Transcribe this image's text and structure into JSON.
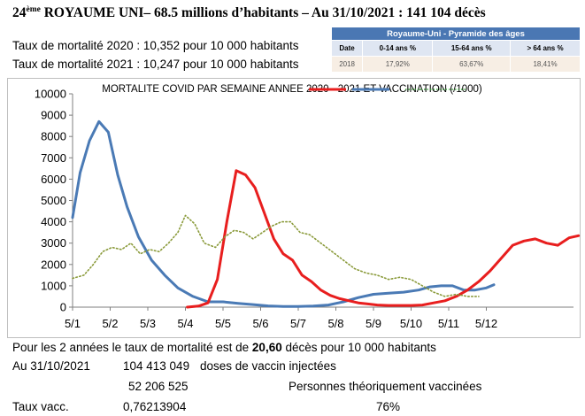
{
  "header": {
    "rank": "24",
    "rank_suffix": "ème",
    "title": " ROYAUME UNI– 68.5 millions d’habitants – Au 31/10/2021 : 141 104 décès"
  },
  "rates": [
    "Taux de mortalité 2020 : 10,352 pour 10 000 habitants",
    "Taux de mortalité 2021 : 10,247 pour 10 000 habitants"
  ],
  "pyramid": {
    "caption": "Royaume-Uni - Pyramide des âges",
    "columns": [
      "Date",
      "0-14 ans %",
      "15-64 ans %",
      "> 64 ans %"
    ],
    "row": [
      "2018",
      "17,92%",
      "63,67%",
      "18,41%"
    ]
  },
  "chart_data": {
    "type": "line",
    "title": "MORTALITE COVID PAR SEMAINE ANNEE 2020 - 2021 ET VACCINATION (/1000)",
    "ylim": [
      0,
      10000
    ],
    "yticks": [
      "0",
      "1000",
      "2000",
      "3000",
      "4000",
      "5000",
      "6000",
      "7000",
      "8000",
      "9000",
      "10000"
    ],
    "xticks": [
      "5/1",
      "5/2",
      "5/3",
      "5/4",
      "5/5",
      "5/6",
      "5/7",
      "5/8",
      "5/9",
      "5/10",
      "5/11",
      "5/12"
    ],
    "grid": false,
    "series": [
      {
        "color": "#4a7ab5",
        "style": "solid",
        "points": [
          [
            0,
            4200
          ],
          [
            0.2,
            6300
          ],
          [
            0.45,
            7800
          ],
          [
            0.7,
            8700
          ],
          [
            0.95,
            8200
          ],
          [
            1.2,
            6200
          ],
          [
            1.45,
            4700
          ],
          [
            1.75,
            3300
          ],
          [
            2.1,
            2200
          ],
          [
            2.45,
            1500
          ],
          [
            2.8,
            900
          ],
          [
            3.2,
            500
          ],
          [
            3.6,
            250
          ],
          [
            4.0,
            250
          ],
          [
            4.4,
            180
          ],
          [
            4.8,
            120
          ],
          [
            5.2,
            60
          ],
          [
            5.6,
            30
          ],
          [
            6.0,
            30
          ],
          [
            6.4,
            50
          ],
          [
            6.8,
            100
          ],
          [
            7.2,
            250
          ],
          [
            7.6,
            450
          ],
          [
            8.0,
            600
          ],
          [
            8.4,
            650
          ],
          [
            8.8,
            700
          ],
          [
            9.2,
            800
          ],
          [
            9.5,
            950
          ],
          [
            9.8,
            1000
          ],
          [
            10.1,
            1000
          ],
          [
            10.4,
            800
          ],
          [
            10.7,
            800
          ],
          [
            11.0,
            900
          ],
          [
            11.2,
            1050
          ]
        ]
      },
      {
        "color": "#e81e1e",
        "style": "solid",
        "points": [
          [
            3.05,
            0
          ],
          [
            3.35,
            50
          ],
          [
            3.6,
            200
          ],
          [
            3.85,
            1300
          ],
          [
            4.1,
            4000
          ],
          [
            4.35,
            6400
          ],
          [
            4.6,
            6200
          ],
          [
            4.85,
            5600
          ],
          [
            5.1,
            4400
          ],
          [
            5.35,
            3200
          ],
          [
            5.6,
            2500
          ],
          [
            5.85,
            2200
          ],
          [
            6.1,
            1500
          ],
          [
            6.35,
            1200
          ],
          [
            6.6,
            800
          ],
          [
            6.85,
            550
          ],
          [
            7.1,
            400
          ],
          [
            7.35,
            300
          ],
          [
            7.6,
            200
          ],
          [
            7.85,
            150
          ],
          [
            8.1,
            100
          ],
          [
            8.4,
            80
          ],
          [
            8.7,
            80
          ],
          [
            9.0,
            80
          ],
          [
            9.3,
            100
          ],
          [
            9.6,
            200
          ],
          [
            9.9,
            300
          ],
          [
            10.2,
            500
          ],
          [
            10.5,
            800
          ],
          [
            10.8,
            1200
          ],
          [
            11.1,
            1700
          ],
          [
            11.4,
            2300
          ],
          [
            11.7,
            2900
          ],
          [
            12.0,
            3100
          ],
          [
            12.3,
            3200
          ],
          [
            12.6,
            3000
          ],
          [
            12.9,
            2900
          ],
          [
            13.2,
            3250
          ],
          [
            13.45,
            3350
          ]
        ]
      },
      {
        "color": "#8a9a3a",
        "style": "dotted",
        "points": [
          [
            0,
            1350
          ],
          [
            0.3,
            1500
          ],
          [
            0.55,
            2000
          ],
          [
            0.8,
            2600
          ],
          [
            1.05,
            2800
          ],
          [
            1.3,
            2700
          ],
          [
            1.55,
            3000
          ],
          [
            1.8,
            2500
          ],
          [
            2.05,
            2700
          ],
          [
            2.3,
            2600
          ],
          [
            2.55,
            3000
          ],
          [
            2.8,
            3500
          ],
          [
            3.0,
            4300
          ],
          [
            3.25,
            3900
          ],
          [
            3.5,
            3000
          ],
          [
            3.8,
            2800
          ],
          [
            4.05,
            3300
          ],
          [
            4.3,
            3600
          ],
          [
            4.55,
            3500
          ],
          [
            4.8,
            3200
          ],
          [
            5.05,
            3500
          ],
          [
            5.3,
            3800
          ],
          [
            5.55,
            4000
          ],
          [
            5.8,
            4000
          ],
          [
            6.05,
            3500
          ],
          [
            6.3,
            3400
          ],
          [
            6.6,
            3000
          ],
          [
            6.9,
            2600
          ],
          [
            7.2,
            2200
          ],
          [
            7.5,
            1800
          ],
          [
            7.8,
            1600
          ],
          [
            8.1,
            1500
          ],
          [
            8.4,
            1300
          ],
          [
            8.7,
            1400
          ],
          [
            9.0,
            1300
          ],
          [
            9.3,
            1000
          ],
          [
            9.6,
            700
          ],
          [
            9.9,
            500
          ],
          [
            10.2,
            600
          ],
          [
            10.5,
            500
          ],
          [
            10.8,
            500
          ]
        ]
      }
    ]
  },
  "bottom": {
    "line1_a": "Pour les 2 années le taux de mortalité est de ",
    "line1_b": "20,60",
    "line1_c": " décès pour 10 000 habitants",
    "date_label": "Au 31/10/2021",
    "doses": "104 413 049",
    "doses_label": "doses de vaccin injectées",
    "persons": "52 206 525",
    "persons_label": "Personnes théoriquement vaccinées",
    "rate_label": "Taux vacc.",
    "rate_value": "0,76213904",
    "rate_pct": "76%"
  }
}
